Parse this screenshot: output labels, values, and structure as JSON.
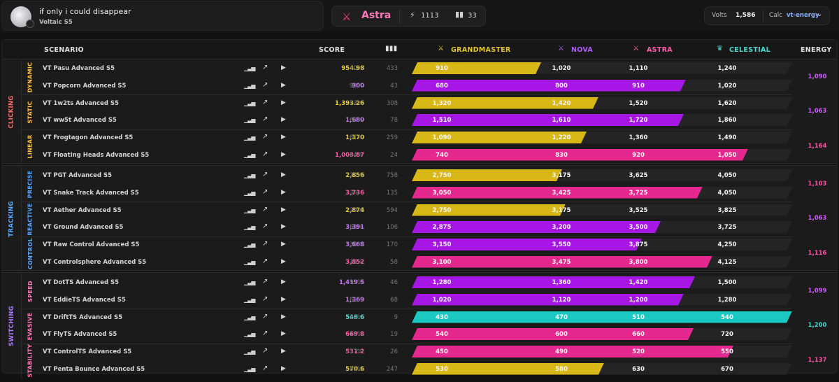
{
  "profile": {
    "name": "if only i could disappear",
    "subtitle": "Voltaic S5"
  },
  "rank": {
    "name": "Astra",
    "energy": "1113",
    "count": "33"
  },
  "settings": {
    "volts_label": "Volts",
    "volts_value": "1,586",
    "calc_label": "Calc",
    "calc_value": "vt-energy"
  },
  "header": {
    "scenario": "SCENARIO",
    "score": "SCORE",
    "energy": "ENERGY"
  },
  "rank_columns": [
    {
      "name": "GRANDMASTER",
      "color": "#d8b816",
      "header_color": "#e2c22d",
      "icon": "crossed-swords-icon"
    },
    {
      "name": "NOVA",
      "color": "#a617e6",
      "header_color": "#b45cff",
      "icon": "crossed-swords-icon"
    },
    {
      "name": "ASTRA",
      "color": "#e5288e",
      "header_color": "#ff5aa8",
      "icon": "crossed-swords-icon"
    },
    {
      "name": "CELESTIAL",
      "color": "#1cc9c0",
      "header_color": "#4fd8d0",
      "icon": "crown-icon"
    }
  ],
  "tier_colors": {
    "grandmaster": "#d8b816",
    "nova": "#a617e6",
    "astra": "#e5288e",
    "celestial": "#1cc9c0"
  },
  "categories": [
    {
      "name": "CLICKING",
      "color": "#ff6b6b",
      "subcategories": [
        {
          "name": "DYNAMIC",
          "color": "#ffc247",
          "energy": "1,090",
          "energy_color": "#d05cff",
          "scenarios": [
            {
              "name": "VT Pasu Advanced S5",
              "score": "954.98",
              "score_color": "#e8cc3a",
              "pct": "40%",
              "plays": "433",
              "thresholds": [
                "910",
                "1,020",
                "1,110",
                "1,240"
              ],
              "bar_color": "#d8b816",
              "fill": 0.34
            },
            {
              "name": "VT Popcorn Advanced S5",
              "score": "900",
              "score_color": "#c974ff",
              "pct": "90%",
              "plays": "43",
              "thresholds": [
                "680",
                "800",
                "910",
                "1,020"
              ],
              "bar_color": "#a617e6",
              "fill": 0.72
            }
          ]
        },
        {
          "name": "STATIC",
          "color": "#ffc247",
          "energy": "1,063",
          "energy_color": "#d05cff",
          "scenarios": [
            {
              "name": "VT 1w2ts Advanced S5",
              "score": "1,393.26",
              "score_color": "#e8cc3a",
              "pct": "73%",
              "plays": "308",
              "thresholds": [
                "1,320",
                "1,420",
                "1,520",
                "1,620"
              ],
              "bar_color": "#d8b816",
              "fill": 0.49
            },
            {
              "name": "VT ww5t Advanced S5",
              "score": "1,680",
              "score_color": "#c974ff",
              "pct": "63%",
              "plays": "78",
              "thresholds": [
                "1,510",
                "1,610",
                "1,720",
                "1,860"
              ],
              "bar_color": "#a617e6",
              "fill": 0.715
            }
          ]
        },
        {
          "name": "LINEAR",
          "color": "#ffc247",
          "energy": "1,164",
          "energy_color": "#ff4fa8",
          "scenarios": [
            {
              "name": "VT Frogtagon Advanced S5",
              "score": "1,170",
              "score_color": "#e8cc3a",
              "pct": "61%",
              "plays": "259",
              "thresholds": [
                "1,090",
                "1,220",
                "1,360",
                "1,490"
              ],
              "bar_color": "#d8b816",
              "fill": 0.46
            },
            {
              "name": "VT Floating Heads Advanced S5",
              "score": "1,003.87",
              "score_color": "#ff5aa8",
              "pct": "64%",
              "plays": "24",
              "thresholds": [
                "740",
                "830",
                "920",
                "1,050"
              ],
              "bar_color": "#e5288e",
              "fill": 0.885
            }
          ]
        }
      ]
    },
    {
      "name": "TRACKING",
      "color": "#5aa9ff",
      "subcategories": [
        {
          "name": "PRECISE",
          "color": "#5aa9ff",
          "energy": "1,103",
          "energy_color": "#ff4fa8",
          "scenarios": [
            {
              "name": "VT PGT Advanced S5",
              "score": "2,856",
              "score_color": "#e8cc3a",
              "pct": "24%",
              "plays": "758",
              "thresholds": [
                "2,750",
                "3,175",
                "3,625",
                "4,050"
              ],
              "bar_color": "#d8b816",
              "fill": 0.395
            },
            {
              "name": "VT Snake Track Advanced S5",
              "score": "3,736",
              "score_color": "#ff5aa8",
              "pct": "3%",
              "plays": "135",
              "thresholds": [
                "3,050",
                "3,425",
                "3,725",
                "4,050"
              ],
              "bar_color": "#e5288e",
              "fill": 0.765
            }
          ]
        },
        {
          "name": "REACTIVE",
          "color": "#5aa9ff",
          "energy": "1,063",
          "energy_color": "#d05cff",
          "scenarios": [
            {
              "name": "VT Aether Advanced S5",
              "score": "2,874",
              "score_color": "#e8cc3a",
              "pct": "29%",
              "plays": "594",
              "thresholds": [
                "2,750",
                "3,175",
                "3,525",
                "3,825"
              ],
              "bar_color": "#d8b816",
              "fill": 0.405
            },
            {
              "name": "VT Ground Advanced S5",
              "score": "3,391",
              "score_color": "#c974ff",
              "pct": "63%",
              "plays": "106",
              "thresholds": [
                "2,875",
                "3,200",
                "3,500",
                "3,725"
              ],
              "bar_color": "#a617e6",
              "fill": 0.655
            }
          ]
        },
        {
          "name": "CONTROL",
          "color": "#5aa9ff",
          "energy": "1,116",
          "energy_color": "#ff4fa8",
          "scenarios": [
            {
              "name": "VT Raw Control Advanced S5",
              "score": "3,668",
              "score_color": "#c974ff",
              "pct": "36%",
              "plays": "170",
              "thresholds": [
                "3,150",
                "3,550",
                "3,875",
                "4,250"
              ],
              "bar_color": "#a617e6",
              "fill": 0.605
            },
            {
              "name": "VT Controlsphere Advanced S5",
              "score": "3,852",
              "score_color": "#ff5aa8",
              "pct": "16%",
              "plays": "58",
              "thresholds": [
                "3,100",
                "3,475",
                "3,800",
                "4,125"
              ],
              "bar_color": "#e5288e",
              "fill": 0.79
            }
          ]
        }
      ]
    },
    {
      "name": "SWITCHING",
      "color": "#a97cff",
      "subcategories": [
        {
          "name": "SPEED",
          "color": "#ff7ab8",
          "energy": "1,099",
          "energy_color": "#d05cff",
          "scenarios": [
            {
              "name": "VT DotTS Advanced S5",
              "score": "1,419.5",
              "score_color": "#c974ff",
              "pct": "99%",
              "plays": "46",
              "thresholds": [
                "1,280",
                "1,360",
                "1,420",
                "1,500"
              ],
              "bar_color": "#a617e6",
              "fill": 0.745
            },
            {
              "name": "VT EddieTS Advanced S5",
              "score": "1,169",
              "score_color": "#c974ff",
              "pct": "61%",
              "plays": "68",
              "thresholds": [
                "1,020",
                "1,120",
                "1,200",
                "1,280"
              ],
              "bar_color": "#a617e6",
              "fill": 0.715
            }
          ]
        },
        {
          "name": "EVASIVE",
          "color": "#ff7ab8",
          "energy": "1,200",
          "energy_color": "#3fd8d0",
          "scenarios": [
            {
              "name": "VT DriftTS Advanced S5",
              "score": "546.6",
              "score_color": "#4fd8d0",
              "pct": "22%",
              "plays": "9",
              "thresholds": [
                "430",
                "470",
                "510",
                "540"
              ],
              "bar_color": "#1cc9c0",
              "fill": 1.0
            },
            {
              "name": "VT FlyTS Advanced S5",
              "score": "669.8",
              "score_color": "#ff5aa8",
              "pct": "16%",
              "plays": "19",
              "thresholds": [
                "540",
                "600",
                "660",
                "720"
              ],
              "bar_color": "#e5288e",
              "fill": 0.74
            }
          ]
        },
        {
          "name": "STABILITY",
          "color": "#ff7ab8",
          "energy": "1,137",
          "energy_color": "#ff4fa8",
          "scenarios": [
            {
              "name": "VT ControlTS Advanced S5",
              "score": "531.2",
              "score_color": "#ff5aa8",
              "pct": "37%",
              "plays": "26",
              "thresholds": [
                "450",
                "490",
                "520",
                "550"
              ],
              "bar_color": "#e5288e",
              "fill": 0.845
            },
            {
              "name": "VT Penta Bounce Advanced S5",
              "score": "570.6",
              "score_color": "#e8cc3a",
              "pct": "81%",
              "plays": "247",
              "thresholds": [
                "530",
                "580",
                "630",
                "670"
              ],
              "bar_color": "#d8b816",
              "fill": 0.505
            }
          ]
        }
      ]
    }
  ]
}
